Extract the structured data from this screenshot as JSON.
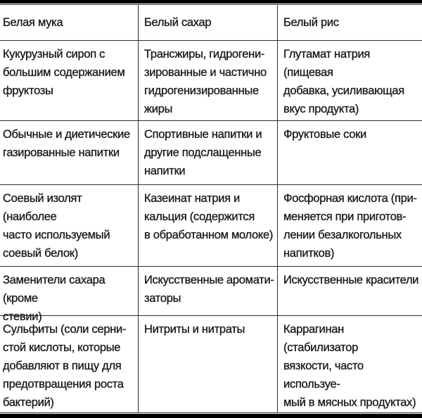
{
  "document": {
    "colors": {
      "background": "#ffffff",
      "text": "#1c1c1c",
      "grid_line": "#2e2e2e",
      "rule_bar": "#000000"
    },
    "table": {
      "headers": [
        "Белая мука",
        "Белый сахар",
        "Белый рис"
      ],
      "rows": [
        [
          "Кукурузный сироп с\nбольшим содержанием\nфруктозы",
          "Трансжиры, гидрогени-\nзированные и частично\nгидрогенизированные\nжиры",
          "Глутамат натрия (пищевая\nдобавка, усиливающая\nвкус продукта)"
        ],
        [
          "Обычные и диетические\nгазированные напитки",
          "Спортивные напитки и\nдругие подслащенные\nнапитки",
          "Фруктовые соки"
        ],
        [
          "Соевый изолят (наиболее\nчасто используемый\nсоевый белок)",
          "Казеинат натрия и\nкальция (содержится\nв обработанном молоке)",
          "Фосфорная кислота (при-\nменяется при приготов-\nлении безалкогольных\nнапитков)"
        ],
        [
          "Заменители сахара (кроме\nстевии)",
          "Искусственные аромати-\nзаторы",
          "Искусственные красители"
        ],
        [
          "Сульфиты (соли серни-\nстой кислоты, которые\nдобавляют в пищу для\nпредотвращения роста\nбактерий)",
          "Нитриты и нитраты",
          "Каррагинан (стабилизатор\nвязкости, часто используе-\nмый в мясных продуктах)"
        ]
      ]
    }
  }
}
